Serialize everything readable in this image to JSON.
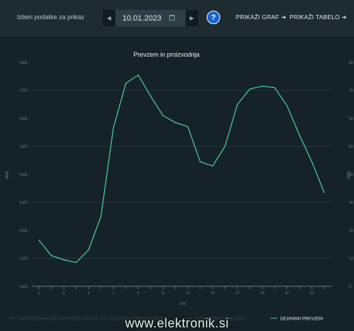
{
  "toolbar": {
    "label": "Izberi podatke za prikaz",
    "date_value": "10.01.2023",
    "help_label": "?",
    "show_graph": "PRIKAŽI GRAF",
    "show_table": "PRIKAŽI TABELO"
  },
  "chart_data": {
    "type": "line",
    "title": "Prevzem in proizvodnja",
    "xlabel": "ura",
    "ylabel": "MW",
    "x": [
      1,
      2,
      3,
      4,
      5,
      6,
      7,
      8,
      9,
      10,
      11,
      12,
      13,
      14,
      15,
      16,
      17,
      18,
      19,
      20,
      21,
      22,
      23,
      24
    ],
    "xticks": [
      "1",
      "3",
      "5",
      "7",
      "9",
      "11",
      "13",
      "15",
      "17",
      "19",
      "21",
      "23"
    ],
    "yticks_left": [
      "1000",
      "1100",
      "1200",
      "1300",
      "1400",
      "1500",
      "1600",
      "1700",
      "1800"
    ],
    "yticks_right": [
      "0",
      "10",
      "20",
      "30",
      "40",
      "50",
      "60",
      "70",
      "80"
    ],
    "ylim": [
      1000,
      1800
    ],
    "grid": true,
    "legend_position": "bottom",
    "legend": [
      "NAPOVEDANA DNEVNA PROIZVODNJA",
      "DEJANSKA PROIZVODNJA",
      "NAPOVEDANI PREVZEM",
      "DEJANSKI PREVZEM"
    ],
    "series": [
      {
        "name": "DEJANSKI PREVZEM",
        "color": "#4fd3a0",
        "values": [
          1165,
          1110,
          1095,
          1085,
          1130,
          1250,
          1565,
          1725,
          1755,
          1680,
          1610,
          1585,
          1570,
          1445,
          1430,
          1500,
          1650,
          1705,
          1715,
          1710,
          1645,
          1540,
          1445,
          1335
        ]
      }
    ]
  },
  "watermark": "www.elektronik.si"
}
